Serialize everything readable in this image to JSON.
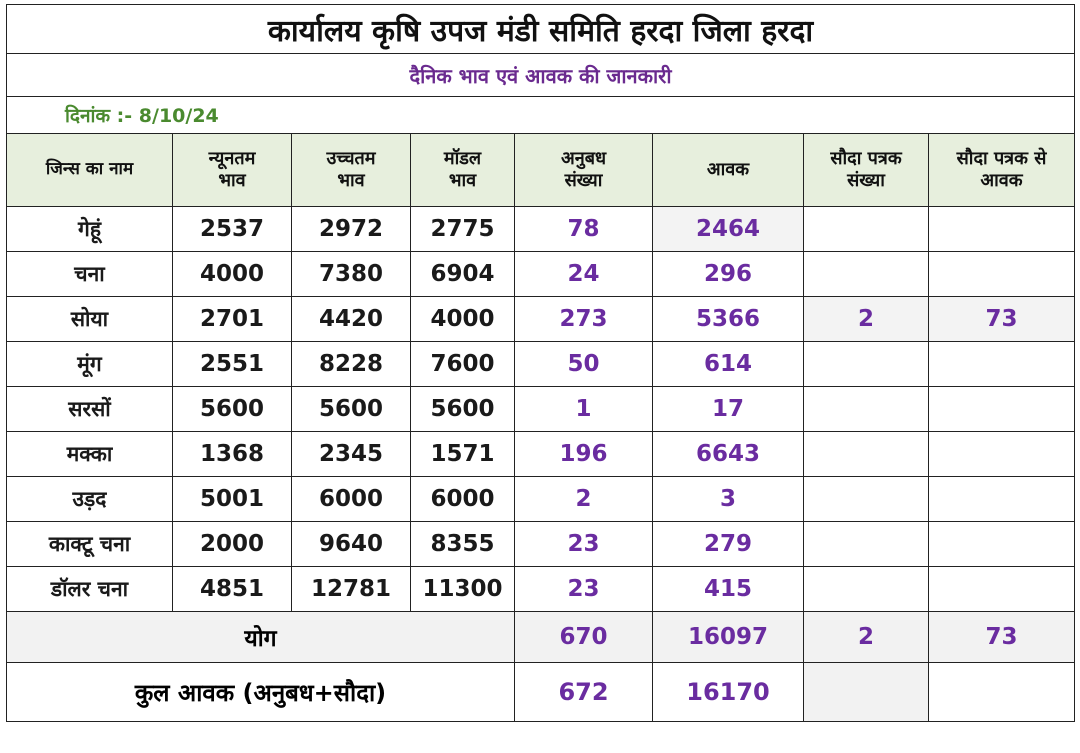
{
  "title": "कार्यालय कृषि उपज मंडी समिति हरदा जिला हरदा",
  "subtitle": "दैनिक भाव एवं आवक की जानकारी",
  "date_label": "दिनांक :-",
  "date_value": "8/10/24",
  "headers": {
    "name": "जिन्स का नाम",
    "min_l1": "न्यूनतम",
    "min_l2": "भाव",
    "max_l1": "उच्चतम",
    "max_l2": "भाव",
    "model_l1": "मॉडल",
    "model_l2": "भाव",
    "contract_l1": "अनुबध",
    "contract_l2": "संख्या",
    "arrival": "आवक",
    "deal_l1": "सौदा पत्रक",
    "deal_l2": "संख्या",
    "deal_arr_l1": "सौदा पत्रक से",
    "deal_arr_l2": "आवक"
  },
  "rows": [
    {
      "name": "गेहूं",
      "min": "2537",
      "max": "2972",
      "model": "2775",
      "contract": "78",
      "arrival": "2464",
      "deal": "",
      "deal_arrival": ""
    },
    {
      "name": "चना",
      "min": "4000",
      "max": "7380",
      "model": "6904",
      "contract": "24",
      "arrival": "296",
      "deal": "",
      "deal_arrival": ""
    },
    {
      "name": "सोया",
      "min": "2701",
      "max": "4420",
      "model": "4000",
      "contract": "273",
      "arrival": "5366",
      "deal": "2",
      "deal_arrival": "73"
    },
    {
      "name": "मूंग",
      "min": "2551",
      "max": "8228",
      "model": "7600",
      "contract": "50",
      "arrival": "614",
      "deal": "",
      "deal_arrival": ""
    },
    {
      "name": "सरसों",
      "min": "5600",
      "max": "5600",
      "model": "5600",
      "contract": "1",
      "arrival": "17",
      "deal": "",
      "deal_arrival": ""
    },
    {
      "name": "मक्का",
      "min": "1368",
      "max": "2345",
      "model": "1571",
      "contract": "196",
      "arrival": "6643",
      "deal": "",
      "deal_arrival": ""
    },
    {
      "name": "उड़द",
      "min": "5001",
      "max": "6000",
      "model": "6000",
      "contract": "2",
      "arrival": "3",
      "deal": "",
      "deal_arrival": ""
    },
    {
      "name": "काक्टू चना",
      "min": "2000",
      "max": "9640",
      "model": "8355",
      "contract": "23",
      "arrival": "279",
      "deal": "",
      "deal_arrival": ""
    },
    {
      "name": "डॉलर चना",
      "min": "4851",
      "max": "12781",
      "model": "11300",
      "contract": "23",
      "arrival": "415",
      "deal": "",
      "deal_arrival": ""
    }
  ],
  "total": {
    "label": "योग",
    "contract": "670",
    "arrival": "16097",
    "deal": "2",
    "deal_arrival": "73"
  },
  "grand": {
    "label": "कुल आवक (अनुबध+सौदा)",
    "contract": "672",
    "arrival": "16170"
  }
}
